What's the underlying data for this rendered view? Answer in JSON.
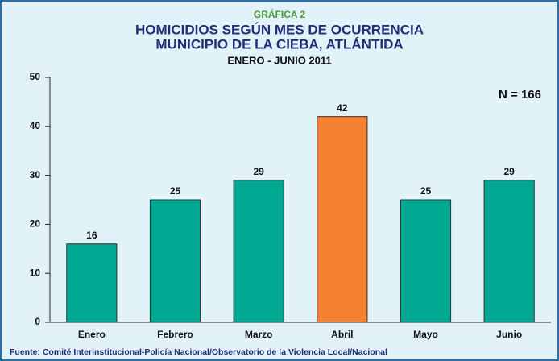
{
  "chart_data": {
    "type": "bar",
    "supertitle": "GRÁFICA 2",
    "title": [
      "HOMICIDIOS SEGÚN MES DE OCURRENCIA",
      "MUNICIPIO DE LA CIEBA, ATLÁNTIDA"
    ],
    "subtitle": "ENERO - JUNIO 2011",
    "annotation": "N = 166",
    "source": "Fuente: Comité Interinstitucional-Policía Nacional/Observatorio de la Violencia Local/Nacional",
    "categories": [
      "Enero",
      "Febrero",
      "Marzo",
      "Abril",
      "Mayo",
      "Junio"
    ],
    "values": [
      16,
      25,
      29,
      42,
      25,
      29
    ],
    "colors": [
      "#00a891",
      "#00a891",
      "#00a891",
      "#f58233",
      "#00a891",
      "#00a891"
    ],
    "ylim": [
      0,
      50
    ],
    "yticks": [
      0,
      10,
      20,
      30,
      40,
      50
    ],
    "grid": false
  }
}
